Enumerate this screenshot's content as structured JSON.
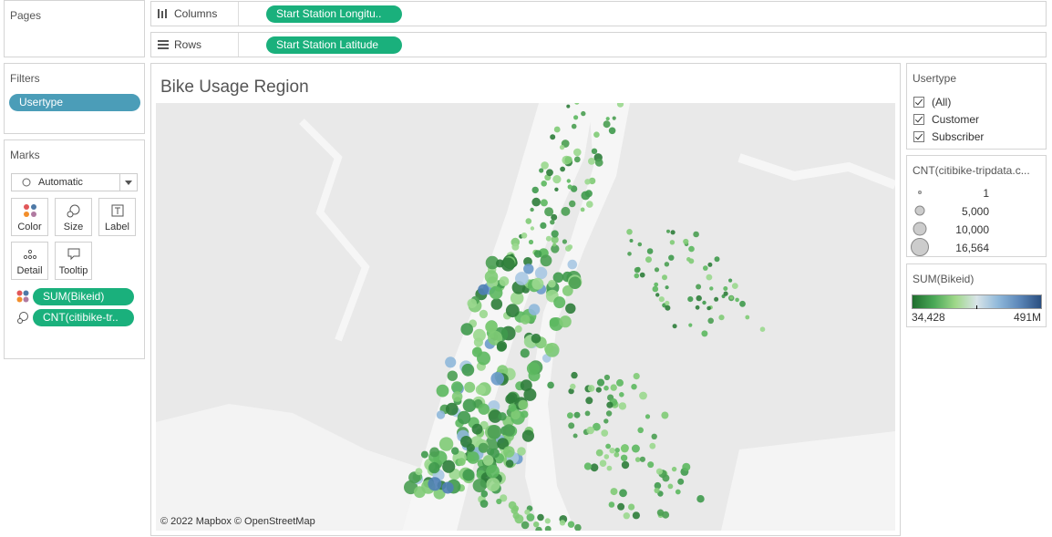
{
  "pages": {
    "title": "Pages"
  },
  "shelves": {
    "columns": {
      "label": "Columns",
      "pill": "Start Station Longitu.."
    },
    "rows": {
      "label": "Rows",
      "pill": "Start Station Latitude"
    }
  },
  "filters": {
    "title": "Filters",
    "pills": [
      "Usertype"
    ]
  },
  "marks": {
    "title": "Marks",
    "dropdown": "Automatic",
    "buttons": [
      "Color",
      "Size",
      "Label",
      "Detail",
      "Tooltip"
    ],
    "pills": [
      "SUM(Bikeid)",
      "CNT(citibike-tr.."
    ]
  },
  "sheet": {
    "title": "Bike Usage Region",
    "attribution": "© 2022 Mapbox © OpenStreetMap"
  },
  "usertype_filter": {
    "title": "Usertype",
    "options": [
      {
        "label": "(All)",
        "checked": true
      },
      {
        "label": "Customer",
        "checked": true
      },
      {
        "label": "Subscriber",
        "checked": true
      }
    ]
  },
  "size_legend": {
    "title": "CNT(citibike-tripdata.c...",
    "entries": [
      "1",
      "5,000",
      "10,000",
      "16,564"
    ]
  },
  "color_legend": {
    "title": "SUM(Bikeid)",
    "min_label": "34,428",
    "max_label": "491M"
  }
}
